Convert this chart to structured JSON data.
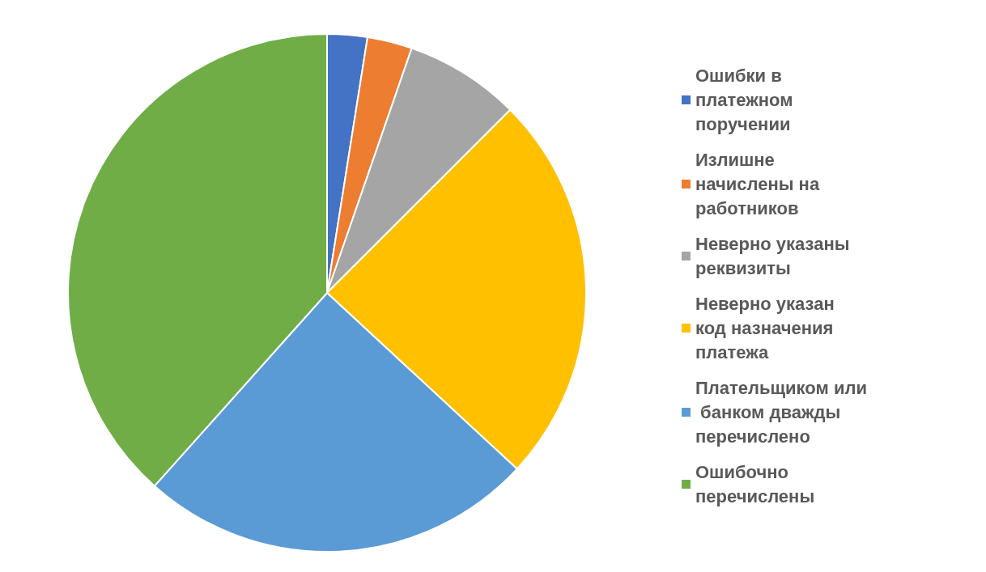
{
  "chart_data": {
    "type": "pie",
    "categories": [
      "Ошибки в платежном поручении",
      "Излишне начислены на работников",
      "Неверно указаны реквизиты",
      "Неверно указан код назначения платежа",
      "Плательщиком или банком дважды перечислено",
      "Ошибочно перечислены"
    ],
    "values": [
      2.5,
      2.8,
      7.2,
      24.4,
      24.7,
      38.4
    ],
    "colors": [
      "#4472c4",
      "#ed7d31",
      "#a5a5a5",
      "#ffc000",
      "#5b9bd5",
      "#70ad47"
    ],
    "legend": "right"
  }
}
